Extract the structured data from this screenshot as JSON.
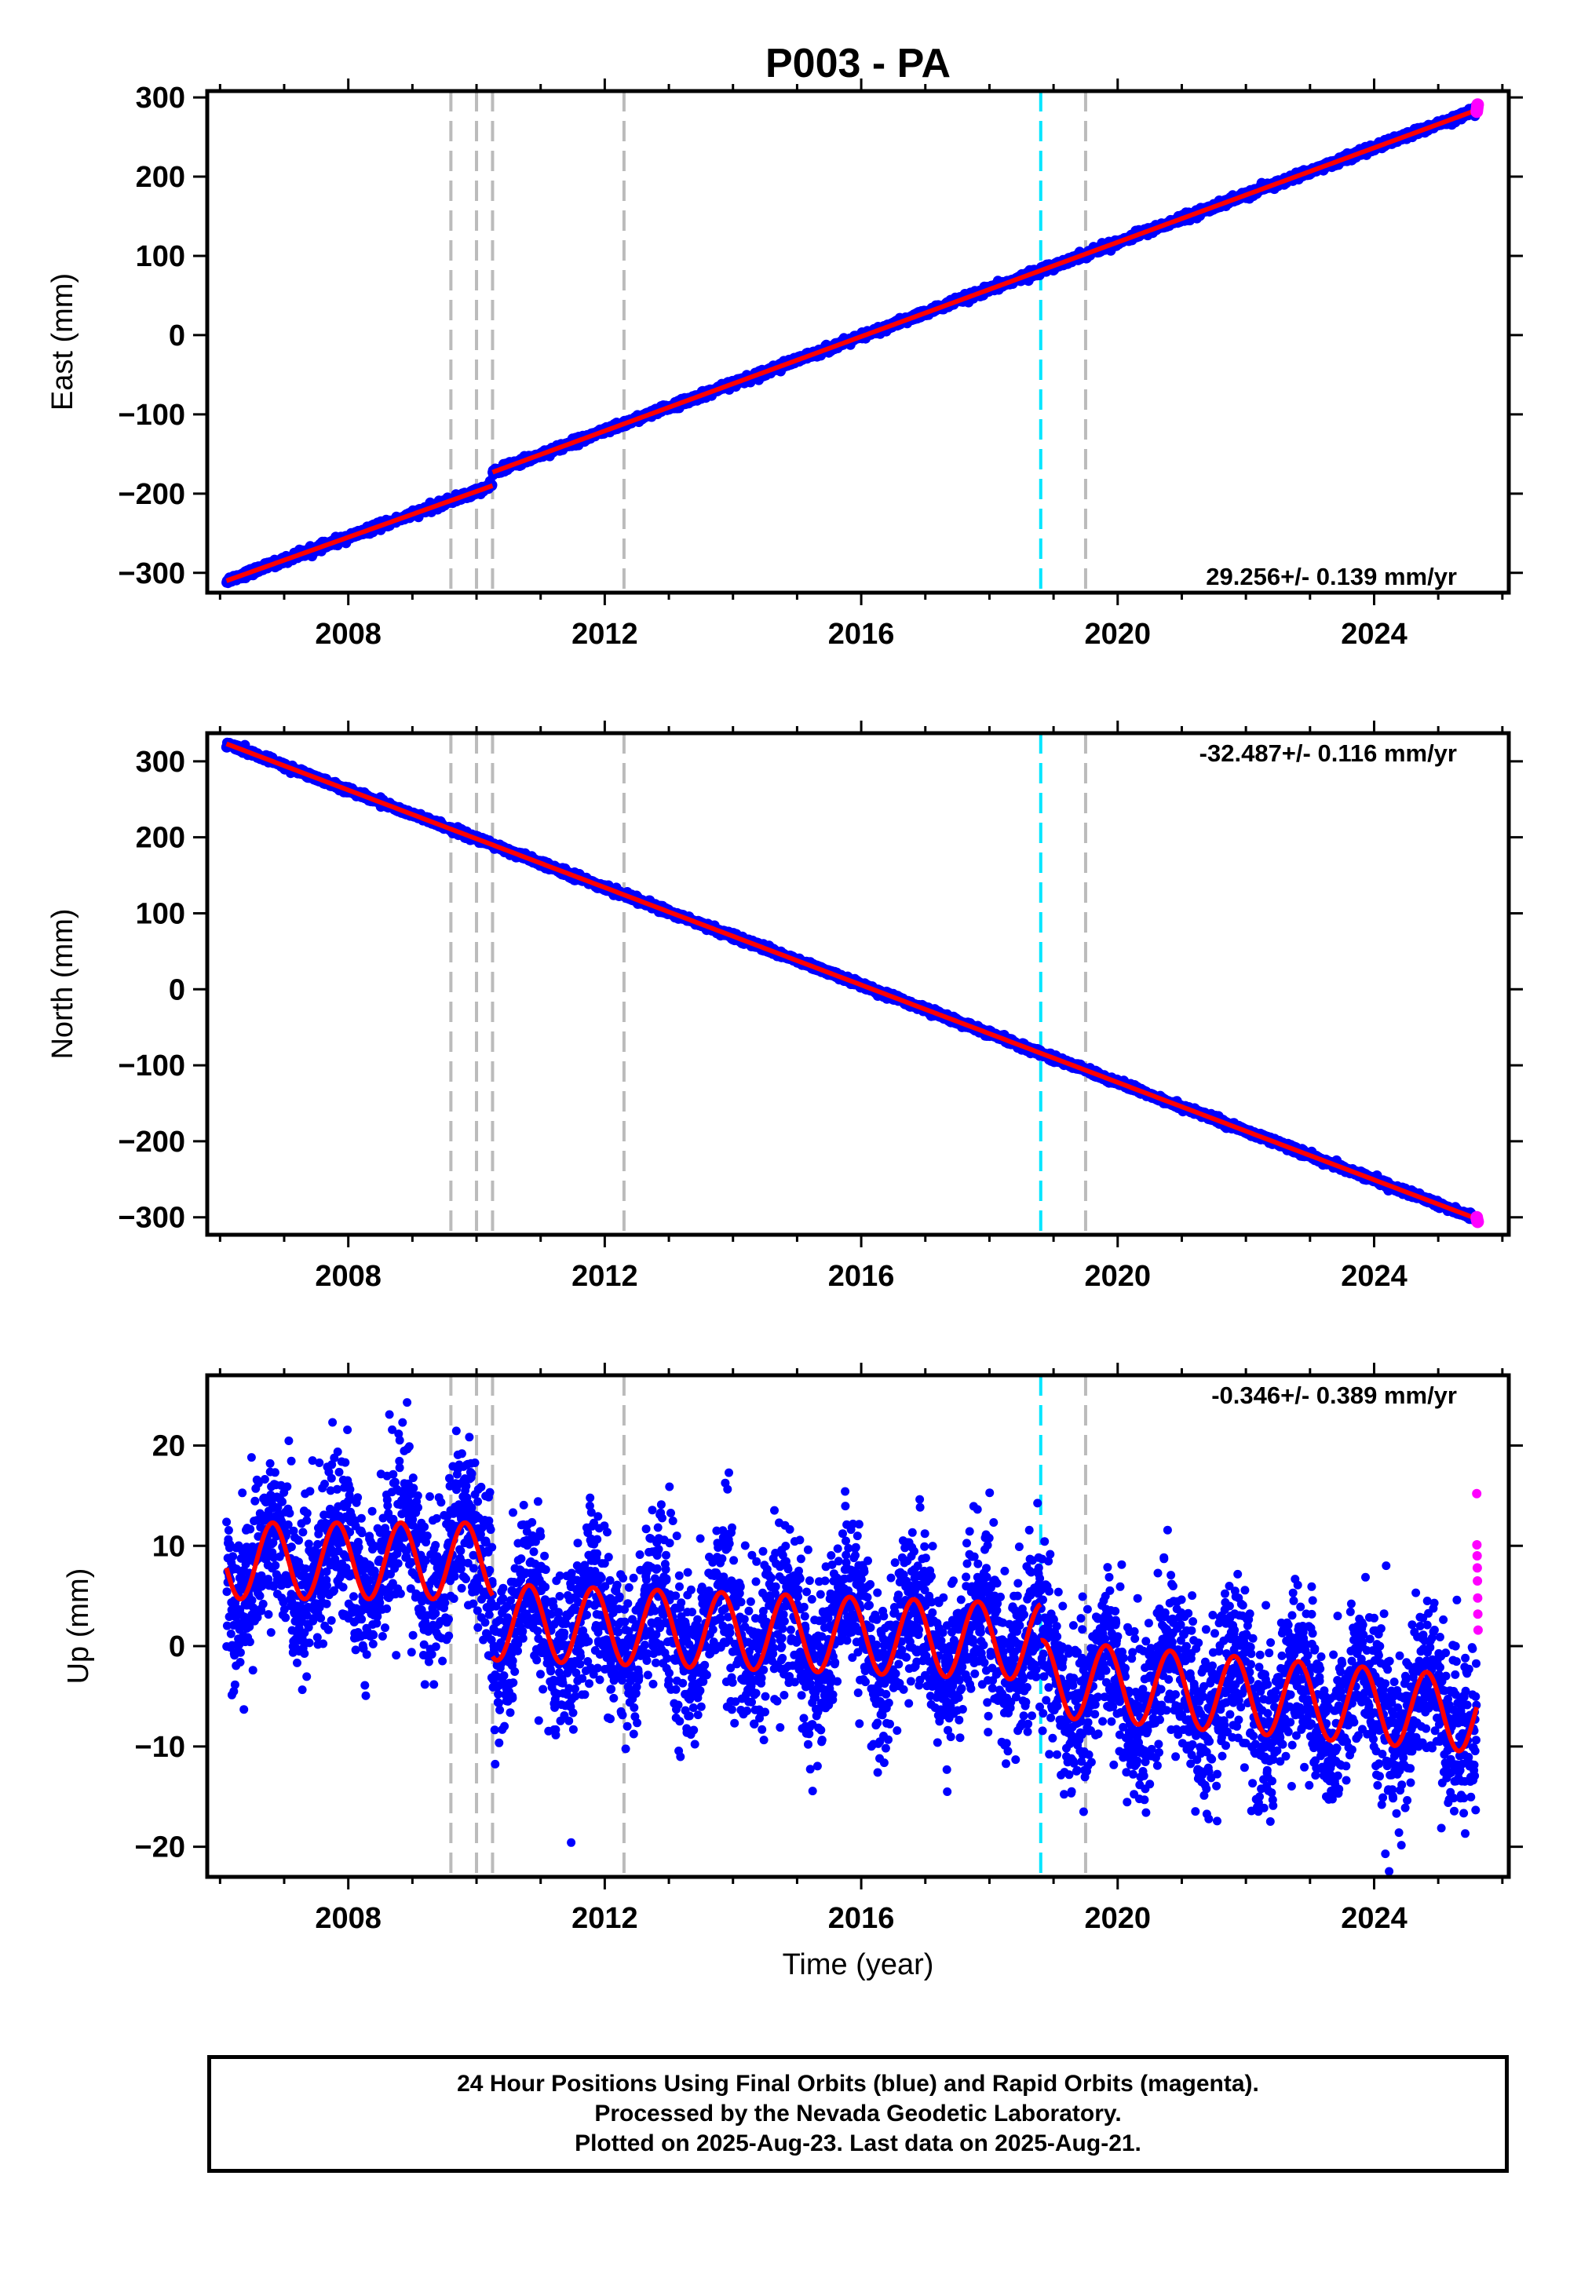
{
  "title": "P003 - PA",
  "colors": {
    "final_orbits": "#0000ff",
    "rapid_orbits": "#ff00ff",
    "model_fit": "#ff0000",
    "event_gray": "#bbbbbb",
    "event_cyan": "#00e5ff"
  },
  "xlabel": "Time (year)",
  "footer": {
    "line1": "24 Hour Positions Using Final Orbits (blue) and Rapid Orbits (magenta).",
    "line2": "Processed by the Nevada Geodetic Laboratory.",
    "line3": "Plotted on 2025-Aug-23. Last data on 2025-Aug-21."
  },
  "chart_data": [
    {
      "type": "scatter",
      "component": "east",
      "ylabel": "East (mm)",
      "rate_label": "29.256+/- 0.139 mm/yr",
      "xlim": [
        2005.8,
        2026.1
      ],
      "ylim": [
        -325,
        308
      ],
      "x_ticks": [
        2008,
        2012,
        2016,
        2020,
        2024
      ],
      "y_ticks": [
        -300,
        -200,
        -100,
        0,
        100,
        200,
        300
      ],
      "y_tick_labels": [
        "−300",
        "−200",
        "−100",
        "0",
        "100",
        "200",
        "300"
      ],
      "events_gray": [
        2009.6,
        2010.0,
        2010.25,
        2012.3,
        2019.5
      ],
      "events_cyan": [
        2018.8
      ],
      "trend": [
        {
          "start": 2006.1,
          "end": 2010.25,
          "y_start": -310,
          "y_end": -190
        },
        {
          "start": 2010.25,
          "end": 2025.6,
          "y_start": -173,
          "y_end": 284
        }
      ],
      "seasonal_amplitude": 0,
      "noise_mm": 2.2,
      "rapid_values": [
        282,
        284,
        286,
        288,
        290,
        291
      ],
      "slope_mm_per_yr": 29.256
    },
    {
      "type": "scatter",
      "component": "north",
      "ylabel": "North (mm)",
      "rate_label": "-32.487+/- 0.116 mm/yr",
      "xlim": [
        2005.8,
        2026.1
      ],
      "ylim": [
        -323,
        337
      ],
      "x_ticks": [
        2008,
        2012,
        2016,
        2020,
        2024
      ],
      "y_ticks": [
        -300,
        -200,
        -100,
        0,
        100,
        200,
        300
      ],
      "y_tick_labels": [
        "−300",
        "−200",
        "−100",
        "0",
        "100",
        "200",
        "300"
      ],
      "events_gray": [
        2009.6,
        2010.0,
        2010.25,
        2012.3,
        2019.5
      ],
      "events_cyan": [
        2018.8
      ],
      "trend": [
        {
          "start": 2006.1,
          "end": 2025.6,
          "y_start": 323,
          "y_end": -302
        }
      ],
      "seasonal_amplitude": 0,
      "noise_mm": 2.0,
      "rapid_values": [
        -300,
        -302,
        -303,
        -304,
        -305,
        -306
      ],
      "slope_mm_per_yr": -32.487
    },
    {
      "type": "scatter",
      "component": "up",
      "ylabel": "Up (mm)",
      "rate_label": "-0.346+/- 0.389 mm/yr",
      "xlim": [
        2005.8,
        2026.1
      ],
      "ylim": [
        -23,
        27
      ],
      "x_ticks": [
        2008,
        2012,
        2016,
        2020,
        2024
      ],
      "y_ticks": [
        -20,
        -10,
        0,
        10,
        20
      ],
      "y_tick_labels": [
        "−20",
        "−10",
        "0",
        "10",
        "20"
      ],
      "events_gray": [
        2009.6,
        2010.0,
        2010.25,
        2012.3,
        2019.5
      ],
      "events_cyan": [
        2018.8
      ],
      "trend": [
        {
          "start": 2006.1,
          "end": 2010.25,
          "y_start": 8.5,
          "y_end": 8.5
        },
        {
          "start": 2010.25,
          "end": 2018.8,
          "y_start": 2.4,
          "y_end": 0.4
        },
        {
          "start": 2018.8,
          "end": 2025.6,
          "y_start": -3.2,
          "y_end": -6.8
        }
      ],
      "seasonal_amplitude": 3.8,
      "seasonal_phase_year": 0.57,
      "noise_mm": 4.0,
      "rapid_values": [
        15.2,
        10.1,
        9.0,
        7.8,
        6.5,
        4.8,
        3.2,
        1.6
      ],
      "slope_mm_per_yr": -0.346
    }
  ]
}
